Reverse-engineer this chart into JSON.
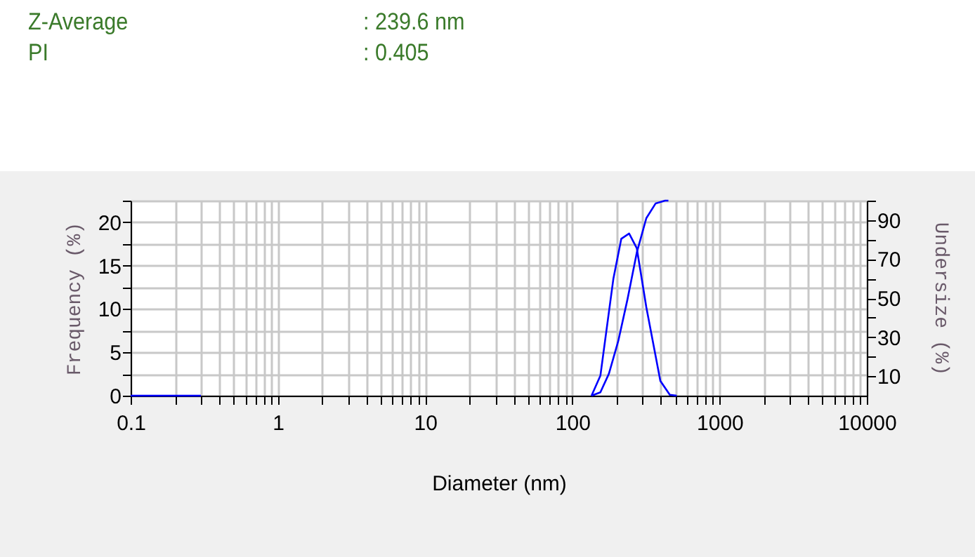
{
  "chart_data": {
    "type": "line",
    "annotations": [
      "Z-Average",
      ": 239.6 nm",
      "PI",
      ": 0.405"
    ],
    "xlabel": "Diameter (nm)",
    "ylabel": "Frequency (%)",
    "y2label": "Undersize (%)",
    "log": "x",
    "grid": true,
    "marker": "none",
    "line_style": "solid",
    "xlim": [
      0.1,
      10000
    ],
    "xticks": [
      0.1,
      {
        "value": 0.2,
        "label": null
      },
      {
        "value": 0.3,
        "label": null
      },
      {
        "value": 0.4,
        "label": null
      },
      {
        "value": 0.5,
        "label": null
      },
      {
        "value": 0.6,
        "label": null
      },
      {
        "value": 0.7,
        "label": null
      },
      {
        "value": 0.8,
        "label": null
      },
      {
        "value": 0.9,
        "label": null
      },
      1,
      {
        "value": 2,
        "label": null
      },
      {
        "value": 3,
        "label": null
      },
      {
        "value": 4,
        "label": null
      },
      {
        "value": 5,
        "label": null
      },
      {
        "value": 6,
        "label": null
      },
      {
        "value": 7,
        "label": null
      },
      {
        "value": 8,
        "label": null
      },
      {
        "value": 9,
        "label": null
      },
      10,
      {
        "value": 20,
        "label": null
      },
      {
        "value": 30,
        "label": null
      },
      {
        "value": 40,
        "label": null
      },
      {
        "value": 50,
        "label": null
      },
      {
        "value": 60,
        "label": null
      },
      {
        "value": 70,
        "label": null
      },
      {
        "value": 80,
        "label": null
      },
      {
        "value": 90,
        "label": null
      },
      100,
      {
        "value": 200,
        "label": null
      },
      {
        "value": 300,
        "label": null
      },
      {
        "value": 400,
        "label": null
      },
      {
        "value": 500,
        "label": null
      },
      {
        "value": 600,
        "label": null
      },
      {
        "value": 700,
        "label": null
      },
      {
        "value": 800,
        "label": null
      },
      {
        "value": 900,
        "label": null
      },
      1000,
      {
        "value": 2000,
        "label": null
      },
      {
        "value": 3000,
        "label": null
      },
      {
        "value": 4000,
        "label": null
      },
      {
        "value": 5000,
        "label": null
      },
      {
        "value": 6000,
        "label": null
      },
      {
        "value": 7000,
        "label": null
      },
      {
        "value": 8000,
        "label": null
      },
      {
        "value": 9000,
        "label": null
      },
      10000
    ],
    "ylim": [
      0,
      22.5
    ],
    "yticks": [
      0,
      {
        "value": 2.5,
        "label": null
      },
      5,
      {
        "value": 7.5,
        "label": null
      },
      10,
      {
        "value": 12.5,
        "label": null
      },
      15,
      {
        "value": 17.5,
        "label": null
      },
      20,
      {
        "value": 22.5,
        "label": null
      }
    ],
    "y2lim": [
      0,
      100
    ],
    "y2ticks": [
      10,
      {
        "value": 20,
        "label": null
      },
      30,
      {
        "value": 40,
        "label": null
      },
      50,
      {
        "value": 60,
        "label": null
      },
      70,
      {
        "value": 80,
        "label": null
      },
      90,
      {
        "value": 100,
        "label": null
      }
    ],
    "series": [
      {
        "color": "#0000ff",
        "x": [
          0.1,
          0.3,
          null,
          135,
          155,
          190,
          215,
          243,
          274,
          318,
          396,
          459,
          511
        ],
        "values": [
          0,
          0,
          null,
          0,
          2.3,
          13.5,
          18.1,
          18.7,
          17.0,
          10.2,
          1.7,
          0.1,
          0
        ]
      },
      {
        "color": "#0000ff",
        "axis": "y2",
        "x": [
          135,
          155,
          177,
          205,
          237,
          274,
          318,
          368,
          426,
          449
        ],
        "values": [
          0,
          1.7,
          11.2,
          28,
          49.5,
          73.4,
          91,
          98.6,
          100,
          100
        ]
      }
    ]
  }
}
